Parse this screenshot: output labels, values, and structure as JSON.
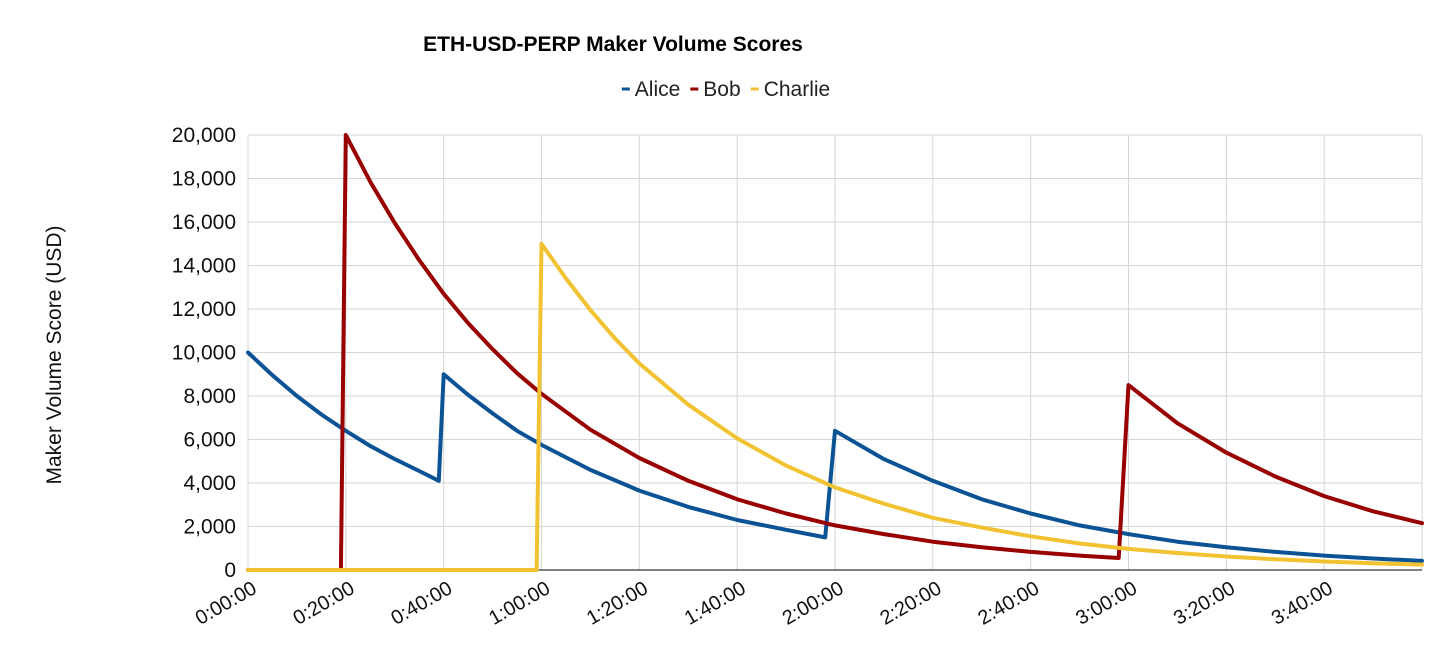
{
  "chart_data": {
    "type": "line",
    "title": "ETH-USD-PERP Maker Volume Scores",
    "xlabel": "",
    "ylabel": "Maker Volume Score (USD)",
    "x_unit": "minutes",
    "xlim": [
      0,
      240
    ],
    "ylim": [
      0,
      20000
    ],
    "y_ticks": [
      0,
      2000,
      4000,
      6000,
      8000,
      10000,
      12000,
      14000,
      16000,
      18000,
      20000
    ],
    "y_tick_labels": [
      "0",
      "2,000",
      "4,000",
      "6,000",
      "8,000",
      "10,000",
      "12,000",
      "14,000",
      "16,000",
      "18,000",
      "20,000"
    ],
    "x_tick_labels": [
      "0:00:00",
      "0:20:00",
      "0:40:00",
      "1:00:00",
      "1:20:00",
      "1:40:00",
      "2:00:00",
      "2:20:00",
      "2:40:00",
      "3:00:00",
      "3:20:00",
      "3:40:00"
    ],
    "grid": true,
    "legend_position": "top",
    "series": [
      {
        "name": "Alice",
        "color": "#0b5394",
        "points": [
          [
            0,
            10000
          ],
          [
            5,
            8950
          ],
          [
            10,
            8000
          ],
          [
            15,
            7150
          ],
          [
            20,
            6400
          ],
          [
            25,
            5700
          ],
          [
            30,
            5100
          ],
          [
            35,
            4550
          ],
          [
            39,
            4100
          ],
          [
            40,
            9000
          ],
          [
            45,
            8050
          ],
          [
            50,
            7200
          ],
          [
            55,
            6400
          ],
          [
            60,
            5750
          ],
          [
            70,
            4600
          ],
          [
            80,
            3650
          ],
          [
            90,
            2900
          ],
          [
            100,
            2300
          ],
          [
            110,
            1850
          ],
          [
            118,
            1500
          ],
          [
            120,
            6400
          ],
          [
            130,
            5100
          ],
          [
            140,
            4100
          ],
          [
            150,
            3250
          ],
          [
            160,
            2600
          ],
          [
            170,
            2050
          ],
          [
            180,
            1650
          ],
          [
            190,
            1300
          ],
          [
            200,
            1050
          ],
          [
            210,
            830
          ],
          [
            220,
            660
          ],
          [
            230,
            530
          ],
          [
            240,
            420
          ]
        ]
      },
      {
        "name": "Bob",
        "color": "#990000",
        "points": [
          [
            0,
            0
          ],
          [
            19,
            0
          ],
          [
            20,
            20000
          ],
          [
            25,
            17850
          ],
          [
            30,
            15950
          ],
          [
            35,
            14250
          ],
          [
            40,
            12700
          ],
          [
            45,
            11350
          ],
          [
            50,
            10150
          ],
          [
            55,
            9050
          ],
          [
            60,
            8100
          ],
          [
            70,
            6450
          ],
          [
            80,
            5150
          ],
          [
            90,
            4100
          ],
          [
            100,
            3250
          ],
          [
            110,
            2600
          ],
          [
            120,
            2050
          ],
          [
            130,
            1650
          ],
          [
            140,
            1300
          ],
          [
            150,
            1050
          ],
          [
            160,
            830
          ],
          [
            170,
            660
          ],
          [
            178,
            550
          ],
          [
            180,
            8500
          ],
          [
            190,
            6750
          ],
          [
            200,
            5400
          ],
          [
            210,
            4300
          ],
          [
            220,
            3400
          ],
          [
            230,
            2700
          ],
          [
            240,
            2150
          ]
        ]
      },
      {
        "name": "Charlie",
        "color": "#f1c232",
        "points": [
          [
            0,
            0
          ],
          [
            59,
            0
          ],
          [
            60,
            15000
          ],
          [
            65,
            13400
          ],
          [
            70,
            11950
          ],
          [
            75,
            10650
          ],
          [
            80,
            9500
          ],
          [
            90,
            7600
          ],
          [
            100,
            6050
          ],
          [
            110,
            4800
          ],
          [
            120,
            3800
          ],
          [
            130,
            3050
          ],
          [
            140,
            2400
          ],
          [
            150,
            1950
          ],
          [
            160,
            1550
          ],
          [
            170,
            1220
          ],
          [
            180,
            970
          ],
          [
            190,
            780
          ],
          [
            200,
            620
          ],
          [
            210,
            490
          ],
          [
            220,
            390
          ],
          [
            230,
            310
          ],
          [
            240,
            250
          ]
        ]
      }
    ]
  }
}
